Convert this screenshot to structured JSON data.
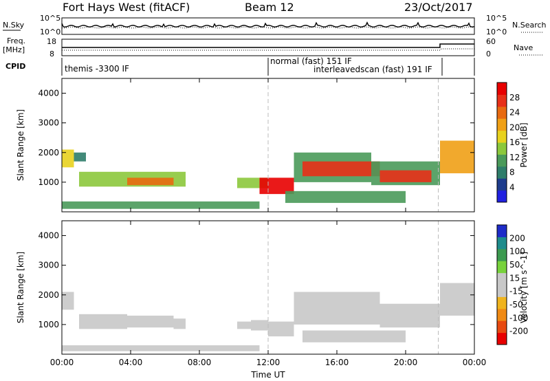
{
  "header": {
    "station": "Fort Hays West (fitACF)",
    "beam": "Beam 12",
    "date": "23/Oct/2017"
  },
  "strip_labels": {
    "nsky": "N.Sky",
    "nsearch": "N.Search",
    "freq_line1": "Freq.",
    "freq_line2": "[MHz]",
    "nave": "Nave",
    "cpid": "CPID"
  },
  "strip_ticks": {
    "nsky_top": "10^5",
    "nsky_bottom": "10^0",
    "nsearch_top": "10^5",
    "nsearch_bottom": "10^0",
    "freq_top": "18",
    "freq_bottom": "8",
    "nave_top": "60",
    "nave_bottom": "0"
  },
  "cpid_labels": {
    "first": "themis -3300 IF",
    "second": "normal (fast) 151 IF",
    "third": "interleavedscan (fast) 191 IF"
  },
  "colors": {
    "power_scale": [
      "#2020e0",
      "#1e3c8c",
      "#2e7d6a",
      "#4a9a5a",
      "#8cc83c",
      "#e8d21e",
      "#f0a016",
      "#e86a10",
      "#e83018",
      "#e80000"
    ],
    "velocity_scale": [
      "#e80000",
      "#e84a10",
      "#f08a14",
      "#f0b41e",
      "#c8c8c8",
      "#c8c8c8",
      "#78d23c",
      "#3c9a50",
      "#1e8c8c",
      "#1e2cc8"
    ],
    "cpid_divider": "#bbbbbb"
  },
  "chart_data": [
    {
      "type": "heatmap",
      "panel": "power",
      "xlabel": "Time UT",
      "ylabel": "Slant Range [km]",
      "xlim": [
        0,
        24
      ],
      "ylim": [
        0,
        4500
      ],
      "x_tick_labels": [
        "00:00",
        "04:00",
        "08:00",
        "12:00",
        "16:00",
        "20:00",
        "00:00"
      ],
      "y_tick_labels": [
        "1000",
        "2000",
        "3000",
        "4000"
      ],
      "colorbar": {
        "label": "Power [dB]",
        "range": [
          0,
          32
        ],
        "tick_labels": [
          "4",
          "8",
          "12",
          "16",
          "20",
          "24",
          "28"
        ]
      },
      "bands": [
        {
          "t_start": 0.0,
          "t_end": 0.7,
          "range_low": 1500,
          "range_high": 2100,
          "value": 18
        },
        {
          "t_start": 0.7,
          "t_end": 1.4,
          "range_low": 1700,
          "range_high": 2000,
          "value": 8
        },
        {
          "t_start": 1.0,
          "t_end": 7.2,
          "range_low": 850,
          "range_high": 1350,
          "value": 15
        },
        {
          "t_start": 3.8,
          "t_end": 6.5,
          "range_low": 900,
          "range_high": 1150,
          "value": 24
        },
        {
          "t_start": 0.0,
          "t_end": 11.5,
          "range_low": 100,
          "range_high": 350,
          "value": 10
        },
        {
          "t_start": 10.2,
          "t_end": 12.0,
          "range_low": 800,
          "range_high": 1150,
          "value": 14
        },
        {
          "t_start": 11.5,
          "t_end": 13.5,
          "range_low": 600,
          "range_high": 1150,
          "value": 30
        },
        {
          "t_start": 13.0,
          "t_end": 20.0,
          "range_low": 300,
          "range_high": 700,
          "value": 12
        },
        {
          "t_start": 13.5,
          "t_end": 18.0,
          "range_low": 1000,
          "range_high": 2000,
          "value": 12
        },
        {
          "t_start": 14.0,
          "t_end": 18.5,
          "range_low": 1200,
          "range_high": 1700,
          "value": 26
        },
        {
          "t_start": 18.0,
          "t_end": 22.0,
          "range_low": 900,
          "range_high": 1700,
          "value": 12
        },
        {
          "t_start": 18.5,
          "t_end": 21.5,
          "range_low": 1000,
          "range_high": 1400,
          "value": 26
        },
        {
          "t_start": 22.0,
          "t_end": 24.0,
          "range_low": 1300,
          "range_high": 2400,
          "value": 22
        }
      ]
    },
    {
      "type": "heatmap",
      "panel": "velocity",
      "xlabel": "Time UT",
      "ylabel": "Slant Range [km]",
      "xlim": [
        0,
        24
      ],
      "ylim": [
        0,
        4500
      ],
      "x_tick_labels": [
        "00:00",
        "04:00",
        "08:00",
        "12:00",
        "16:00",
        "20:00",
        "00:00"
      ],
      "y_tick_labels": [
        "1000",
        "2000",
        "3000",
        "4000"
      ],
      "colorbar": {
        "label": "Velocity [m s^-1]",
        "range": [
          -250,
          250
        ],
        "tick_labels": [
          "-200",
          "-100",
          "-50",
          "-15",
          "15",
          "50",
          "100",
          "200"
        ]
      },
      "bands": [
        {
          "t_start": 0.0,
          "t_end": 0.7,
          "range_low": 1500,
          "range_high": 2100,
          "value": 0
        },
        {
          "t_start": 1.0,
          "t_end": 3.8,
          "range_low": 850,
          "range_high": 1350,
          "value": 0
        },
        {
          "t_start": 3.8,
          "t_end": 6.5,
          "range_low": 900,
          "range_high": 1300,
          "value": -30
        },
        {
          "t_start": 6.5,
          "t_end": 7.2,
          "range_low": 850,
          "range_high": 1200,
          "value": 0
        },
        {
          "t_start": 0.0,
          "t_end": 11.5,
          "range_low": 100,
          "range_high": 300,
          "value": 30
        },
        {
          "t_start": 10.2,
          "t_end": 11.0,
          "range_low": 850,
          "range_high": 1100,
          "value": -30
        },
        {
          "t_start": 11.0,
          "t_end": 12.0,
          "range_low": 800,
          "range_high": 1150,
          "value": 30
        },
        {
          "t_start": 12.0,
          "t_end": 13.5,
          "range_low": 600,
          "range_high": 1100,
          "value": 0
        },
        {
          "t_start": 13.5,
          "t_end": 18.5,
          "range_low": 1000,
          "range_high": 2100,
          "value": 0
        },
        {
          "t_start": 14.0,
          "t_end": 20.0,
          "range_low": 400,
          "range_high": 800,
          "value": 0
        },
        {
          "t_start": 18.5,
          "t_end": 22.0,
          "range_low": 900,
          "range_high": 1700,
          "value": 0
        },
        {
          "t_start": 22.0,
          "t_end": 24.0,
          "range_low": 1300,
          "range_high": 2400,
          "value": 0
        }
      ]
    }
  ],
  "cpid_change_times_ut": [
    12.0,
    21.9
  ]
}
